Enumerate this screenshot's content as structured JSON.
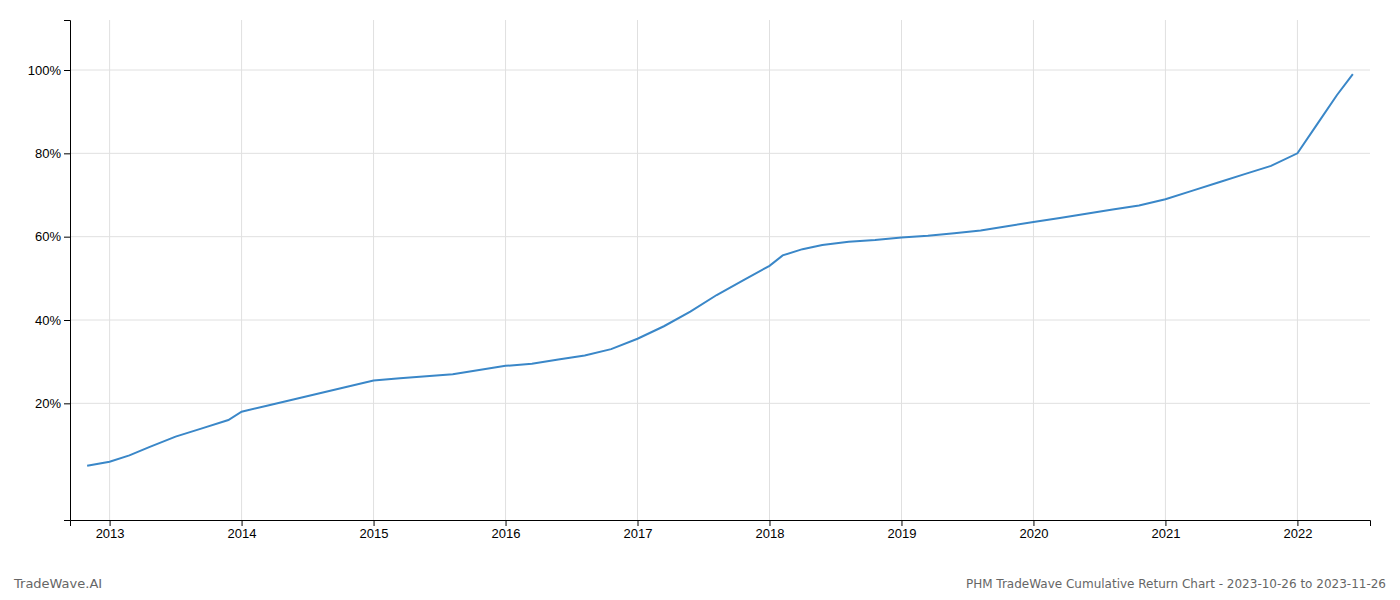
{
  "chart_data": {
    "type": "line",
    "title": "PHM TradeWave Cumulative Return Chart - 2023-10-26 to 2023-11-26",
    "annotations": [
      "TradeWave.AI"
    ],
    "color": "#3a87c8",
    "x": [
      2012.83,
      2013.0,
      2013.15,
      2013.3,
      2013.5,
      2013.7,
      2013.9,
      2014.0,
      2014.2,
      2014.4,
      2014.6,
      2014.8,
      2015.0,
      2015.2,
      2015.4,
      2015.6,
      2015.8,
      2016.0,
      2016.2,
      2016.4,
      2016.6,
      2016.8,
      2017.0,
      2017.2,
      2017.4,
      2017.6,
      2017.8,
      2018.0,
      2018.1,
      2018.25,
      2018.4,
      2018.6,
      2018.8,
      2019.0,
      2019.2,
      2019.4,
      2019.6,
      2019.8,
      2020.0,
      2020.2,
      2020.4,
      2020.6,
      2020.8,
      2021.0,
      2021.2,
      2021.4,
      2021.6,
      2021.8,
      2022.0,
      2022.15,
      2022.3,
      2022.42
    ],
    "values": [
      5.0,
      6.0,
      7.5,
      9.5,
      12.0,
      14.0,
      16.0,
      18.0,
      19.5,
      21.0,
      22.5,
      24.0,
      25.5,
      26.0,
      26.5,
      27.0,
      28.0,
      29.0,
      29.5,
      30.5,
      31.5,
      33.0,
      35.5,
      38.5,
      42.0,
      46.0,
      49.5,
      53.0,
      55.5,
      57.0,
      58.0,
      58.8,
      59.2,
      59.8,
      60.2,
      60.8,
      61.5,
      62.5,
      63.5,
      64.5,
      65.5,
      66.5,
      67.5,
      69.0,
      71.0,
      73.0,
      75.0,
      77.0,
      80.0,
      87.0,
      94.0,
      99.0
    ],
    "xlim": [
      2012.7,
      2022.55
    ],
    "ylim": [
      -8,
      112
    ],
    "xticks": [
      2013,
      2014,
      2015,
      2016,
      2017,
      2018,
      2019,
      2020,
      2021,
      2022
    ],
    "yticks": [
      {
        "value": 20,
        "label": "20%"
      },
      {
        "value": 40,
        "label": "40%"
      },
      {
        "value": 60,
        "label": "60%"
      },
      {
        "value": 80,
        "label": "80%"
      },
      {
        "value": 100,
        "label": "100%"
      }
    ],
    "grid": true
  }
}
